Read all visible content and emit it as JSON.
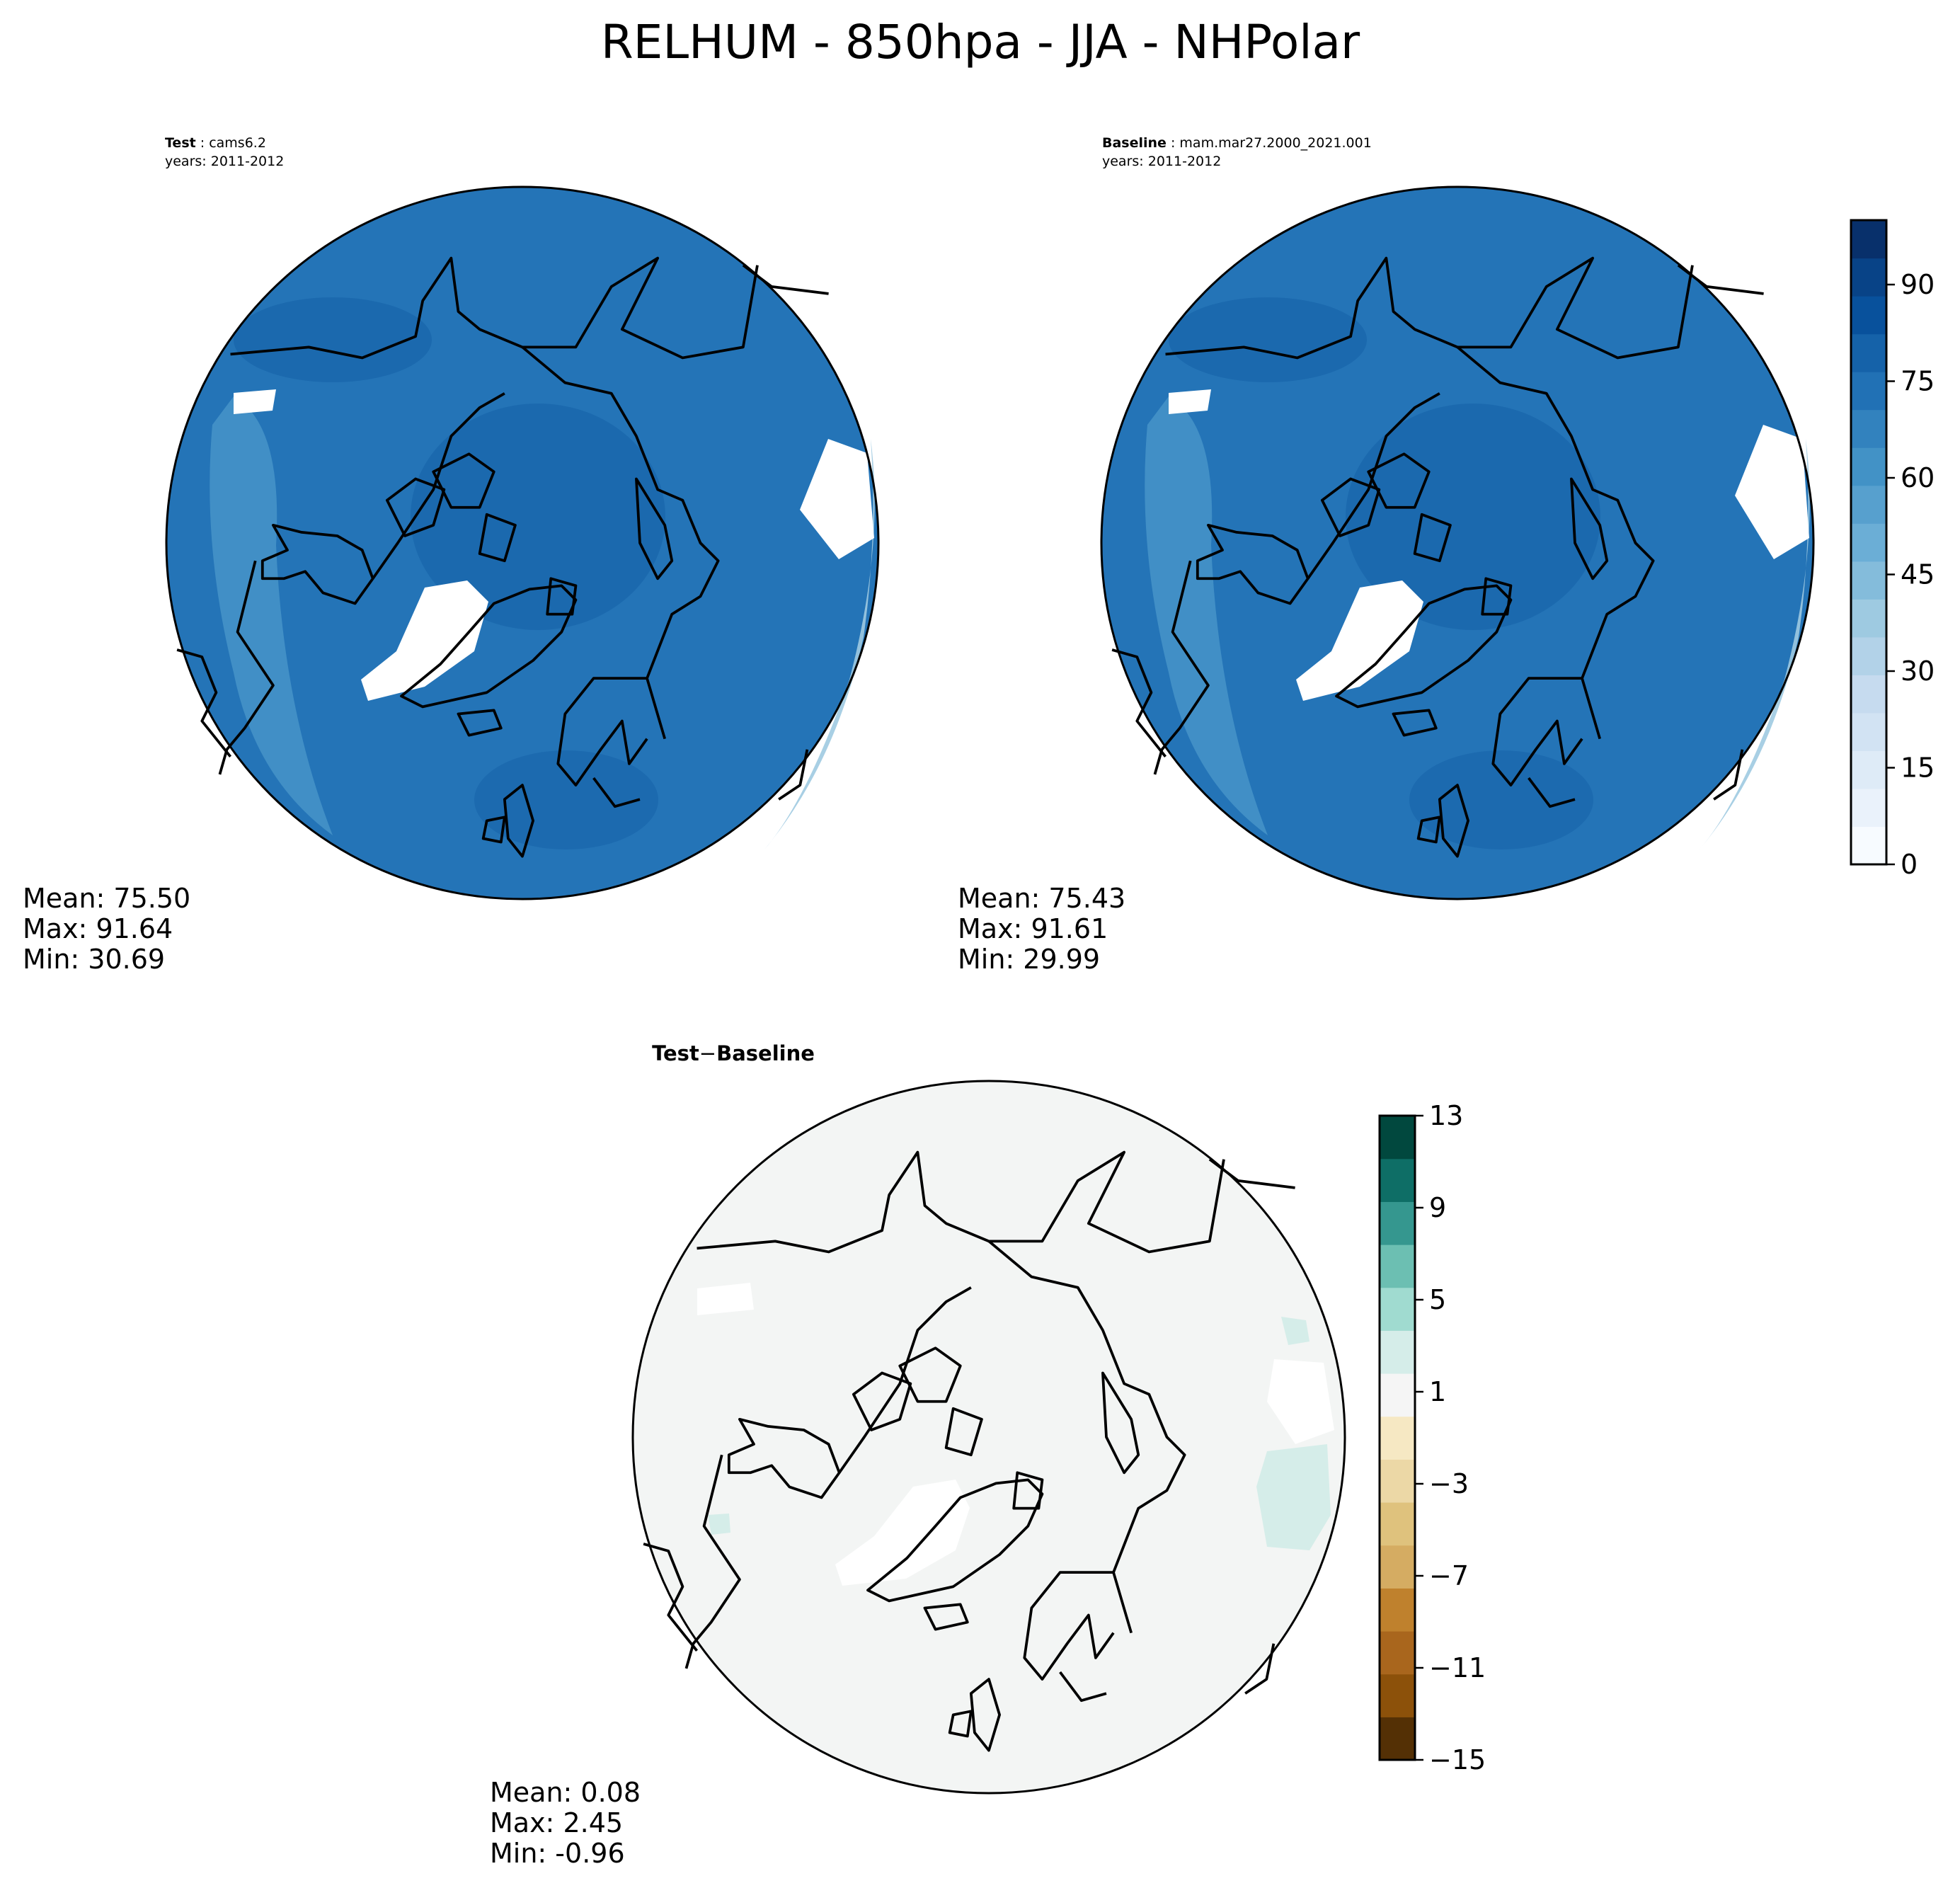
{
  "title": "RELHUM - 850hpa - JJA - NHPolar",
  "panels": [
    {
      "id": "test",
      "header_bold": "Test",
      "header_value": "cams6.2",
      "years": "years: 2011-2012",
      "stats": {
        "mean": "Mean: 75.50",
        "max": "Max: 91.64",
        "min": "Min: 30.69"
      }
    },
    {
      "id": "baseline",
      "header_bold": "Baseline",
      "header_value": "mam.mar27.2000_2021.001",
      "years": "years: 2011-2012",
      "stats": {
        "mean": "Mean: 75.43",
        "max": "Max: 91.61",
        "min": "Min: 29.99"
      }
    },
    {
      "id": "diff",
      "header_bold": "Test",
      "header_sep": "−",
      "header_bold2": "Baseline",
      "stats": {
        "mean": "Mean:  0.08",
        "max": "Max:  2.45",
        "min": "Min: -0.96"
      }
    }
  ],
  "colorbar_main": {
    "min": 0,
    "max": 100,
    "ticks": [
      0,
      15,
      30,
      45,
      60,
      75,
      90
    ],
    "tick_labels": [
      "0",
      "15",
      "30",
      "45",
      "60",
      "75",
      "90"
    ],
    "colors": [
      "#f7fbff",
      "#eaf2fb",
      "#deebf7",
      "#d2e3f3",
      "#c6dbef",
      "#b2d2e8",
      "#9ecae1",
      "#84bcdb",
      "#6baed6",
      "#57a0ce",
      "#4292c6",
      "#3282be",
      "#2171b5",
      "#1562a9",
      "#08519c",
      "#084387",
      "#08306b"
    ]
  },
  "colorbar_diff": {
    "min": -15,
    "max": 13,
    "ticks": [
      -15,
      -11,
      -7,
      -3,
      1,
      5,
      9,
      13
    ],
    "tick_labels": [
      "−15",
      "−11",
      "−7",
      "−3",
      "1",
      "5",
      "9",
      "13"
    ],
    "colors": [
      "#543005",
      "#8c510a",
      "#a9661d",
      "#bf812d",
      "#d5ac62",
      "#dfc27d",
      "#ecd8a6",
      "#f6e8c3",
      "#f5f5f5",
      "#d5ede9",
      "#a0dbd0",
      "#6cbfb2",
      "#35978f",
      "#0e6e66",
      "#01483e"
    ]
  },
  "chart_data": {
    "type": "heatmap",
    "title": "RELHUM - 850hpa - JJA - NHPolar",
    "projection": "north polar stereographic",
    "panels": [
      {
        "name": "Test",
        "case": "cams6.2",
        "years": "2011-2012",
        "mean": 75.5,
        "max": 91.64,
        "min": 30.69,
        "colorbar_range": [
          0,
          100
        ],
        "colormap": "Blues"
      },
      {
        "name": "Baseline",
        "case": "mam.mar27.2000_2021.001",
        "years": "2011-2012",
        "mean": 75.43,
        "max": 91.61,
        "min": 29.99,
        "colorbar_range": [
          0,
          100
        ],
        "colormap": "Blues"
      },
      {
        "name": "Test − Baseline",
        "mean": 0.08,
        "max": 2.45,
        "min": -0.96,
        "colorbar_range": [
          -15,
          13
        ],
        "colormap": "BrBG"
      }
    ]
  }
}
